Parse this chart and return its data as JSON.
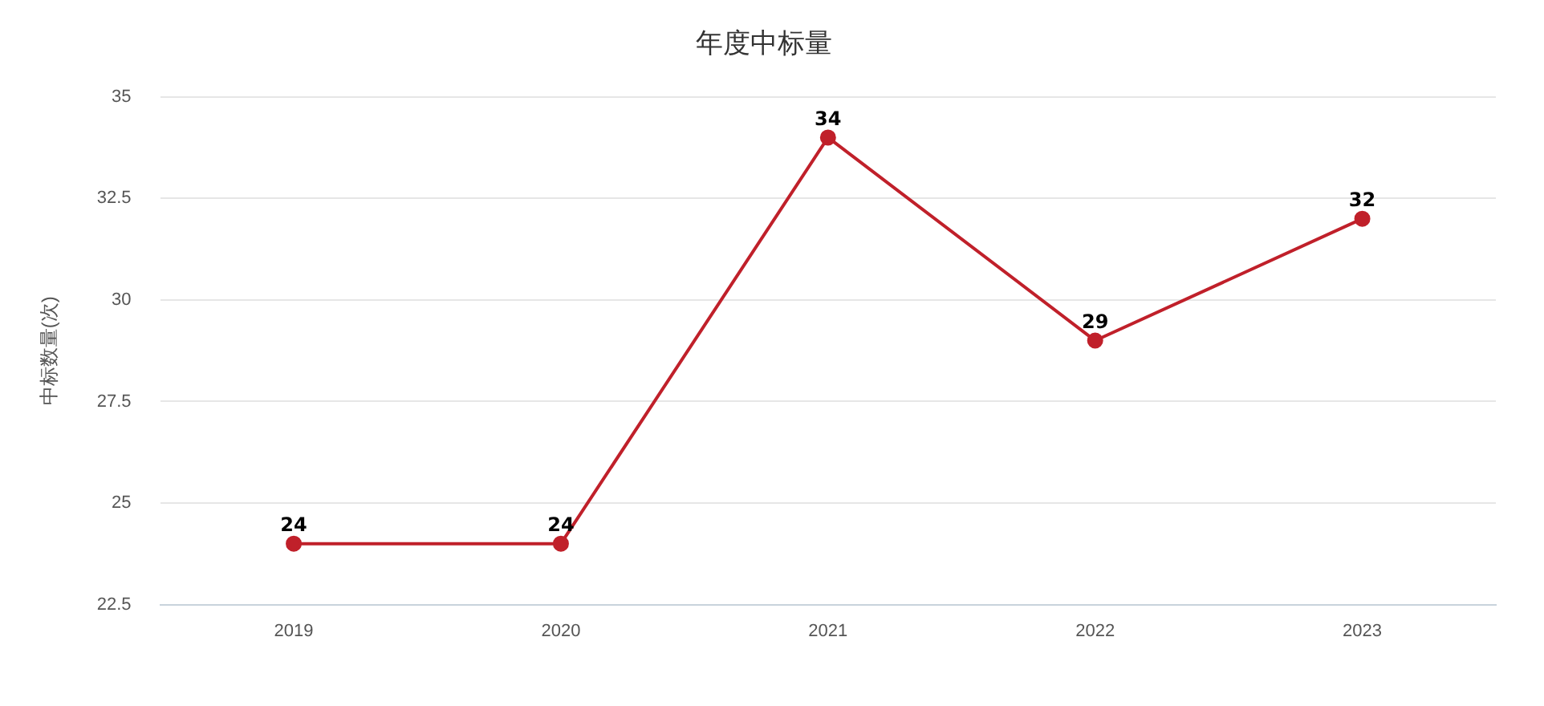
{
  "chart_data": {
    "type": "line",
    "title": "年度中标量",
    "ylabel": "中标数量(次)",
    "categories": [
      "2019",
      "2020",
      "2021",
      "2022",
      "2023"
    ],
    "series": [
      {
        "color": "#c0202a",
        "values": [
          24,
          24,
          34,
          29,
          32
        ]
      }
    ],
    "ylim": [
      22.5,
      35
    ],
    "yticks": [
      22.5,
      25,
      27.5,
      30,
      32.5,
      35
    ],
    "grid": "y",
    "legend": false,
    "marker": "circle",
    "line_style": "solid",
    "data_labels": true
  }
}
